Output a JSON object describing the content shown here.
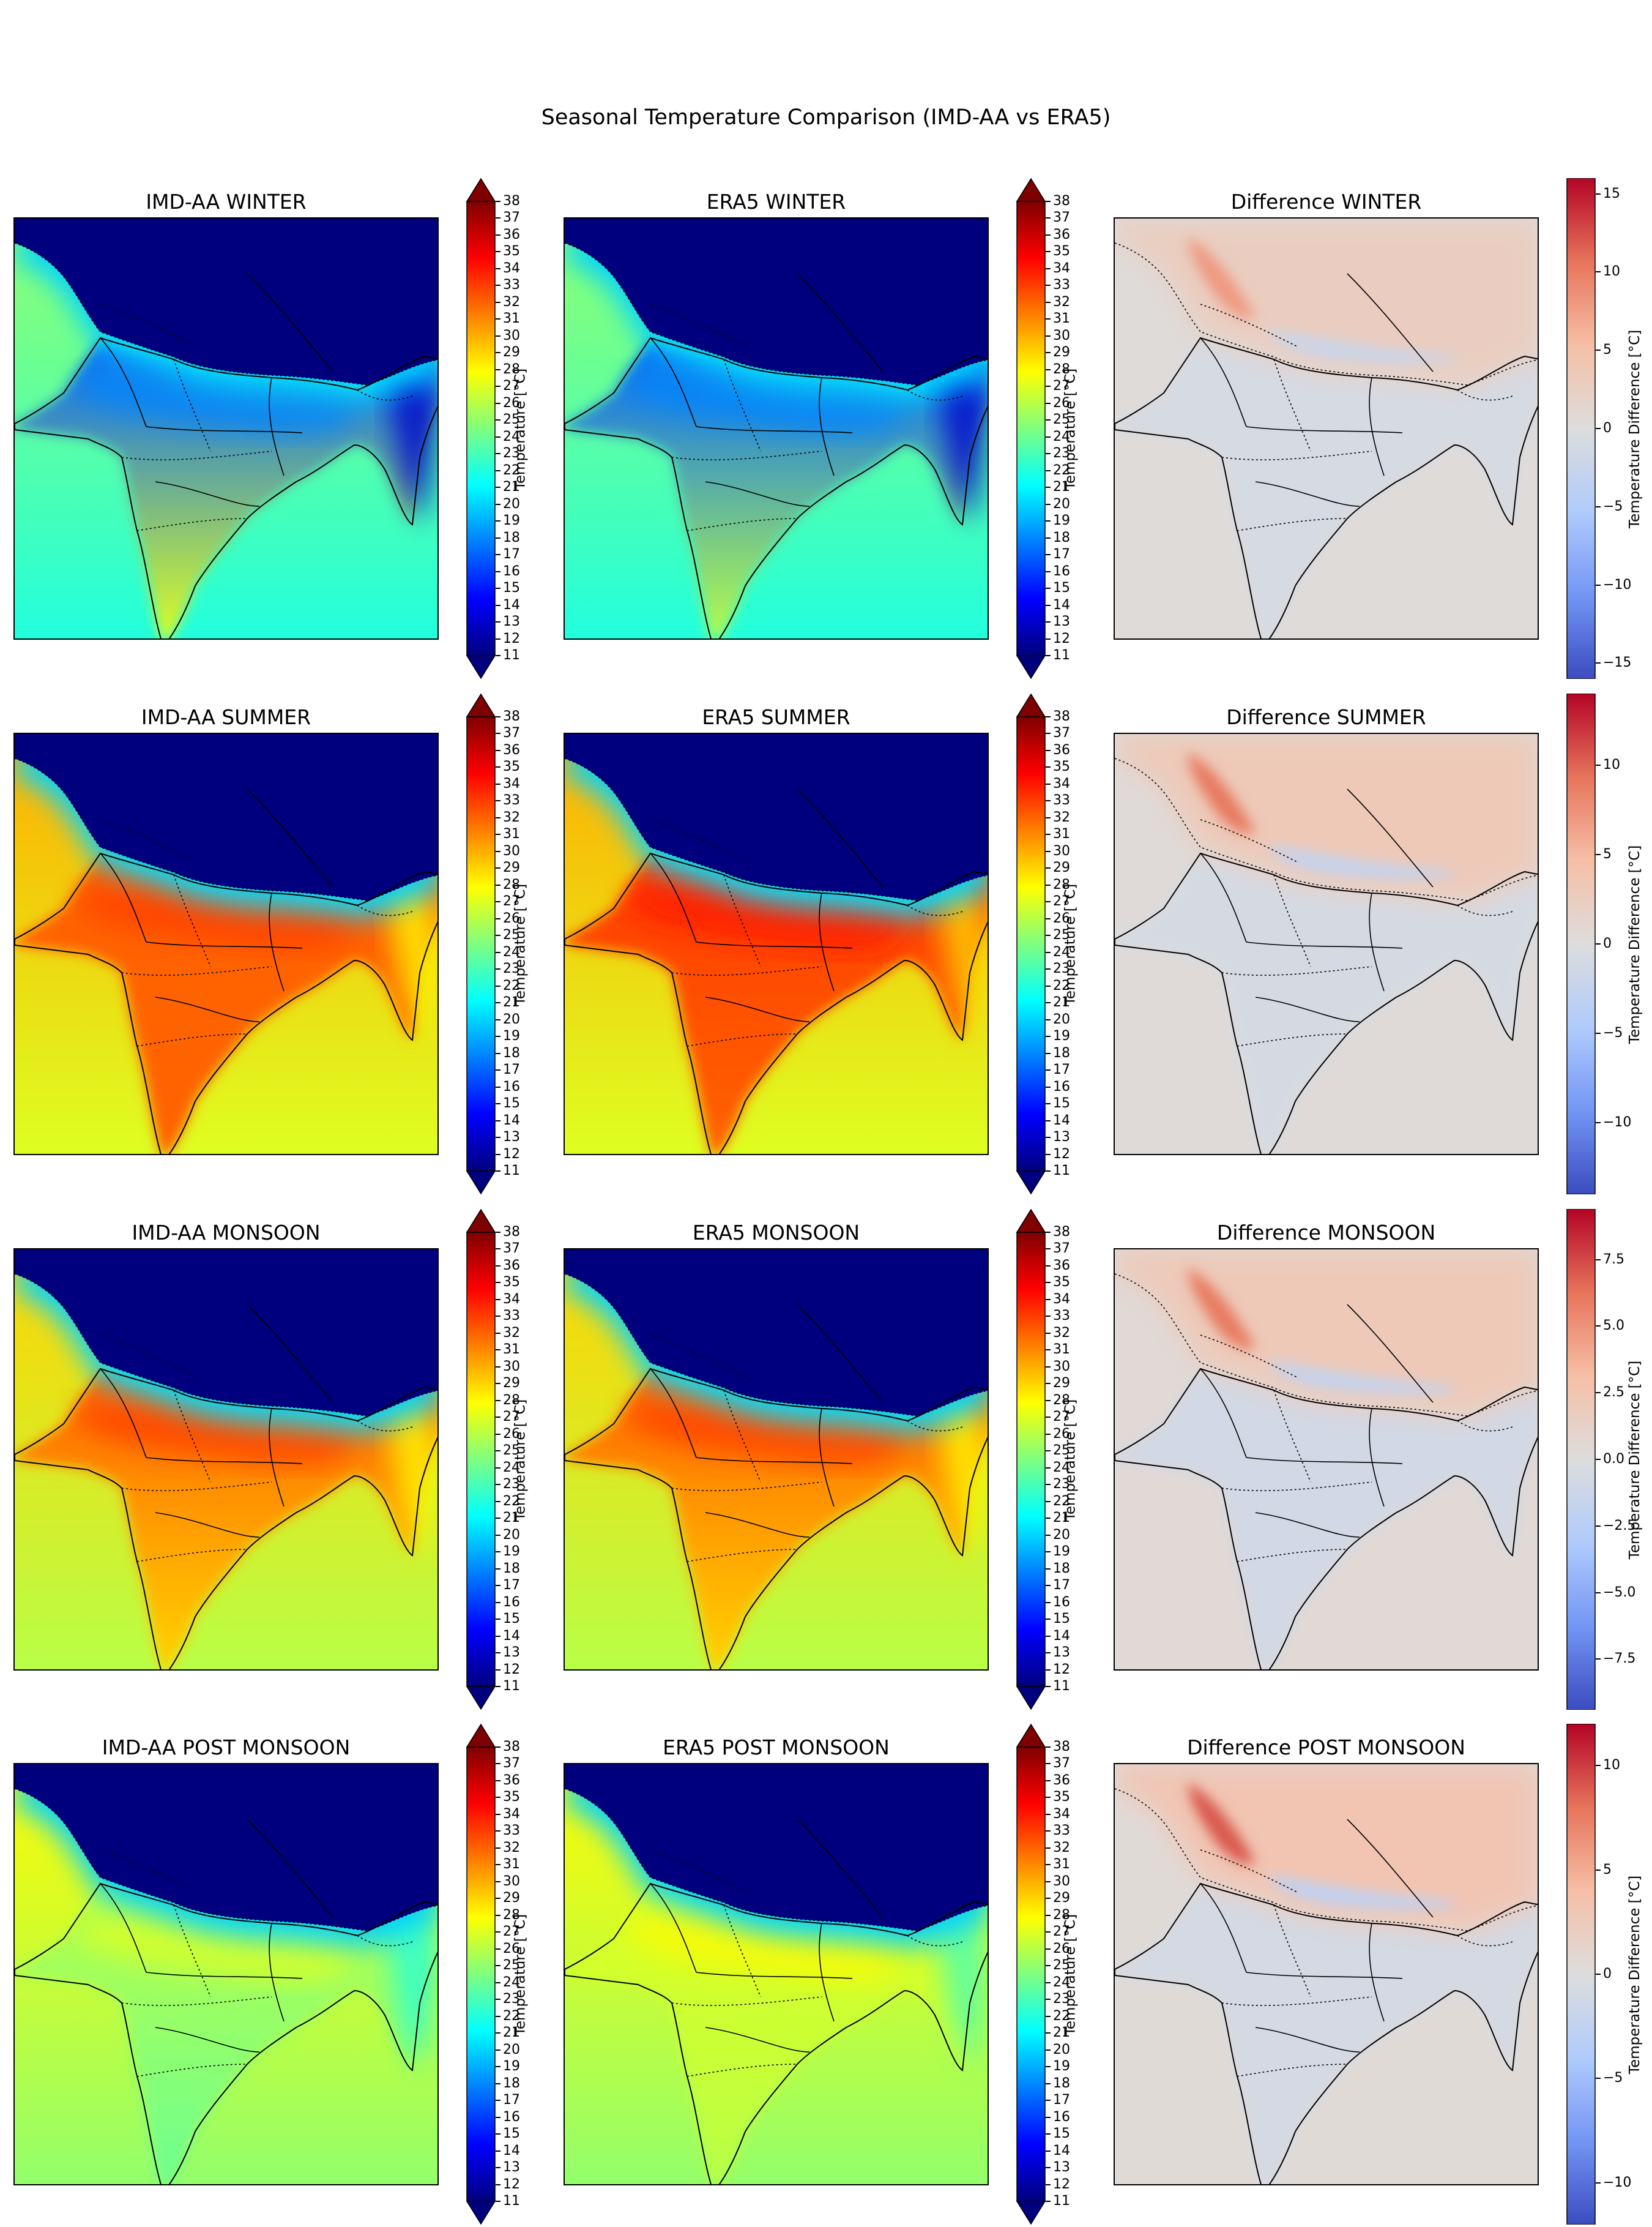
{
  "figure": {
    "suptitle": "Seasonal Temperature Comparison (IMD-AA vs ERA5)"
  },
  "colors": {
    "jet": [
      "#00007f",
      "#0000ff",
      "#007fff",
      "#00ffff",
      "#7fff7f",
      "#ffff00",
      "#ff7f00",
      "#ff0000",
      "#7f0000"
    ],
    "coolwarm": [
      "#3b4cc0",
      "#7396f5",
      "#b0cbfc",
      "#dddddd",
      "#f6bfa6",
      "#e7745b",
      "#b40426"
    ],
    "land_outline": "#000000"
  },
  "chart_data": [
    {
      "type": "heatmap",
      "season": "WINTER",
      "row": 0,
      "panels": [
        {
          "title": "IMD-AA WINTER",
          "colormap": "jet",
          "cbar_label": "Temperature [°C]",
          "vmin": 11,
          "vmax": 38,
          "extend": "both",
          "north_value": 11,
          "plain_value": 17,
          "south_value": 27,
          "sea_value": 25
        },
        {
          "title": "ERA5 WINTER",
          "colormap": "jet",
          "cbar_label": "Temperature [°C]",
          "vmin": 11,
          "vmax": 38,
          "extend": "both",
          "north_value": 11,
          "plain_value": 17,
          "south_value": 26,
          "sea_value": 25
        },
        {
          "title": "Difference WINTER",
          "colormap": "coolwarm",
          "cbar_label": "Temperature Difference [°C]",
          "vmin": -16,
          "vmax": 16,
          "ticks": [
            15,
            10,
            5,
            0,
            -5,
            -10,
            -15
          ],
          "tick_labels": [
            "15",
            "10",
            "5",
            "0",
            "−5",
            "−10",
            "−15"
          ],
          "himalaya_value": 8
        }
      ]
    },
    {
      "type": "heatmap",
      "season": "SUMMER",
      "row": 1,
      "panels": [
        {
          "title": "IMD-AA SUMMER",
          "colormap": "jet",
          "cbar_label": "Temperature [°C]",
          "vmin": 11,
          "vmax": 38,
          "extend": "both",
          "north_value": 11,
          "plain_value": 32,
          "south_value": 32,
          "sea_value": 30
        },
        {
          "title": "ERA5 SUMMER",
          "colormap": "jet",
          "cbar_label": "Temperature [°C]",
          "vmin": 11,
          "vmax": 38,
          "extend": "both",
          "north_value": 11,
          "plain_value": 33,
          "south_value": 32,
          "sea_value": 30
        },
        {
          "title": "Difference SUMMER",
          "colormap": "coolwarm",
          "cbar_label": "Temperature Difference [°C]",
          "vmin": -14,
          "vmax": 14,
          "ticks": [
            10,
            5,
            0,
            -5,
            -10
          ],
          "tick_labels": [
            "10",
            "5",
            "0",
            "−5",
            "−10"
          ],
          "himalaya_value": 9
        }
      ]
    },
    {
      "type": "heatmap",
      "season": "MONSOON",
      "row": 2,
      "panels": [
        {
          "title": "IMD-AA MONSOON",
          "colormap": "jet",
          "cbar_label": "Temperature [°C]",
          "vmin": 11,
          "vmax": 38,
          "extend": "both",
          "north_value": 11,
          "plain_value": 32,
          "south_value": 29,
          "sea_value": 29
        },
        {
          "title": "ERA5 MONSOON",
          "colormap": "jet",
          "cbar_label": "Temperature [°C]",
          "vmin": 11,
          "vmax": 38,
          "extend": "both",
          "north_value": 11,
          "plain_value": 32,
          "south_value": 29,
          "sea_value": 29
        },
        {
          "title": "Difference MONSOON",
          "colormap": "coolwarm",
          "cbar_label": "Temperature Difference [°C]",
          "vmin": -9.4,
          "vmax": 9.4,
          "ticks": [
            7.5,
            5.0,
            2.5,
            0.0,
            -2.5,
            -5.0,
            -7.5
          ],
          "tick_labels": [
            "7.5",
            "5.0",
            "2.5",
            "0.0",
            "−2.5",
            "−5.0",
            "−7.5"
          ],
          "himalaya_value": 6
        }
      ]
    },
    {
      "type": "heatmap",
      "season": "POST MONSOON",
      "row": 3,
      "panels": [
        {
          "title": "IMD-AA POST MONSOON",
          "colormap": "jet",
          "cbar_label": "Temperature [°C]",
          "vmin": 11,
          "vmax": 38,
          "extend": "both",
          "north_value": 11,
          "plain_value": 26,
          "south_value": 24,
          "sea_value": 28
        },
        {
          "title": "ERA5 POST MONSOON",
          "colormap": "jet",
          "cbar_label": "Temperature [°C]",
          "vmin": 11,
          "vmax": 38,
          "extend": "both",
          "north_value": 11,
          "plain_value": 27,
          "south_value": 26,
          "sea_value": 28
        },
        {
          "title": "Difference POST MONSOON",
          "colormap": "coolwarm",
          "cbar_label": "Temperature Difference [°C]",
          "vmin": -12,
          "vmax": 12,
          "ticks": [
            10,
            5,
            0,
            -5,
            -10
          ],
          "tick_labels": [
            "10",
            "5",
            "0",
            "−5",
            "−10"
          ],
          "himalaya_value": 9
        }
      ]
    }
  ]
}
